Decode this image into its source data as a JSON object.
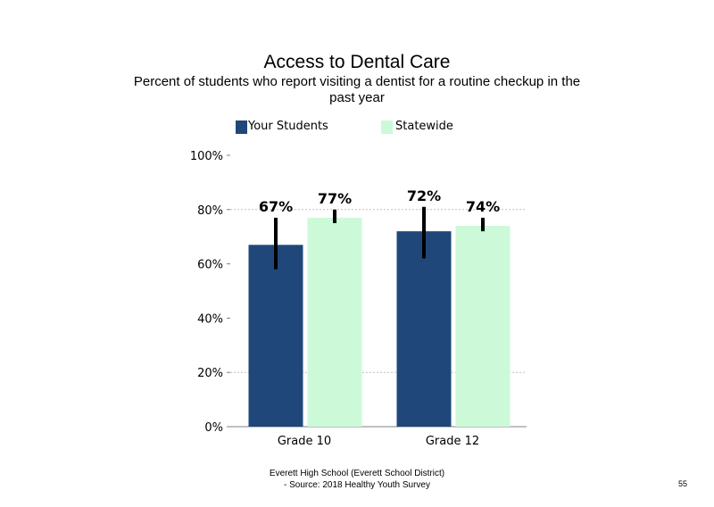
{
  "colors": {
    "your_students": "#1f477a",
    "statewide": "#ccfad9",
    "error_bar": "#000000",
    "grid": "#bfbfbf"
  },
  "chart_data": {
    "type": "bar",
    "title": "Access to Dental Care",
    "subtitle": "Percent of students who report visiting a dentist for a routine checkup in the past year",
    "categories": [
      "Grade 10",
      "Grade 12"
    ],
    "series": [
      {
        "name": "Your Students",
        "values": [
          67,
          72
        ],
        "labels": [
          "67%",
          "72%"
        ],
        "error_low": [
          58,
          62
        ],
        "error_high": [
          77,
          81
        ]
      },
      {
        "name": "Statewide",
        "values": [
          77,
          74
        ],
        "labels": [
          "77%",
          "74%"
        ],
        "error_low": [
          75,
          72
        ],
        "error_high": [
          80,
          77
        ]
      }
    ],
    "ylim": [
      0,
      100
    ],
    "yticks": [
      0,
      20,
      40,
      60,
      80,
      100
    ],
    "ytick_labels": [
      "0%",
      "20%",
      "40%",
      "60%",
      "80%",
      "100%"
    ],
    "gridlines": [
      20,
      80
    ],
    "legend_position": "top",
    "xlabel": "",
    "ylabel": ""
  },
  "footer": {
    "line1": "Everett High School (Everett School District)",
    "line2": "- Source: 2018 Healthy Youth Survey"
  },
  "page_number": "55"
}
